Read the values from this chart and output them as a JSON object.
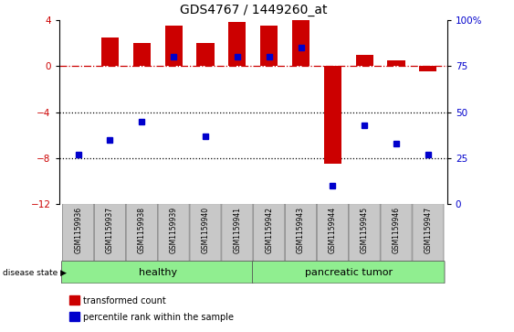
{
  "title": "GDS4767 / 1449260_at",
  "samples": [
    "GSM1159936",
    "GSM1159937",
    "GSM1159938",
    "GSM1159939",
    "GSM1159940",
    "GSM1159941",
    "GSM1159942",
    "GSM1159943",
    "GSM1159944",
    "GSM1159945",
    "GSM1159946",
    "GSM1159947"
  ],
  "red_values": [
    0.0,
    2.5,
    2.0,
    3.5,
    2.0,
    3.8,
    3.5,
    4.0,
    -8.5,
    1.0,
    0.5,
    -0.5
  ],
  "blue_values_pct": [
    27,
    35,
    45,
    80,
    37,
    80,
    80,
    85,
    10,
    43,
    33,
    27
  ],
  "ylim_left": [
    -12,
    4
  ],
  "ylim_right": [
    0,
    100
  ],
  "yticks_left": [
    4,
    0,
    -4,
    -8,
    -12
  ],
  "yticks_right": [
    100,
    75,
    50,
    25,
    0
  ],
  "bar_color": "#CC0000",
  "marker_color": "#0000CC",
  "hline_color": "#CC0000",
  "dotted_line_color": "#000000",
  "bg_color": "#FFFFFF",
  "tick_label_box_color": "#C8C8C8",
  "legend_red_label": "transformed count",
  "legend_blue_label": "percentile rank within the sample",
  "disease_state_label": "disease state",
  "healthy_label": "healthy",
  "tumor_label": "pancreatic tumor",
  "group_color": "#90EE90"
}
